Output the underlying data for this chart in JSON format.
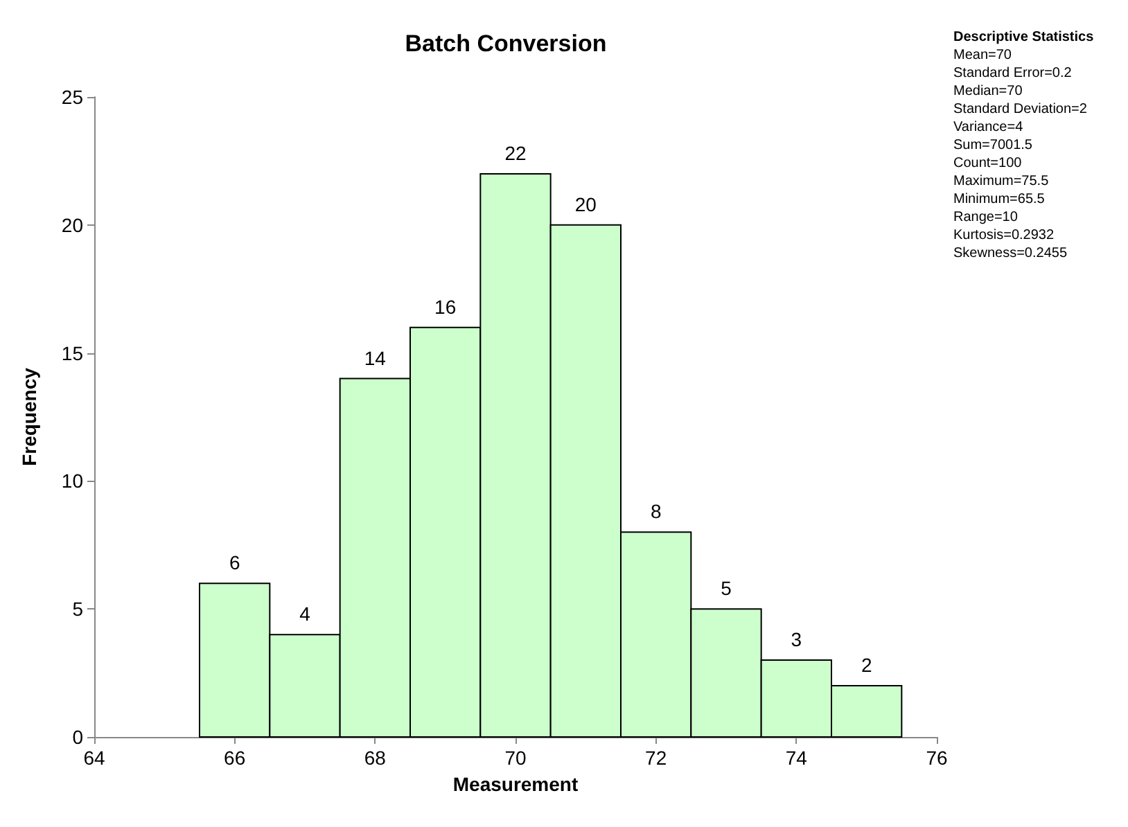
{
  "chart_data": {
    "type": "histogram",
    "title": "Batch Conversion",
    "xlabel": "Measurement",
    "ylabel": "Frequency",
    "bins": [
      65.5,
      66.5,
      67.5,
      68.5,
      69.5,
      70.5,
      71.5,
      72.5,
      73.5,
      74.5,
      75.5
    ],
    "values": [
      6,
      4,
      14,
      16,
      22,
      20,
      8,
      5,
      3,
      2
    ],
    "color": "#ccffcc",
    "xlim": [
      64,
      76
    ],
    "xticks": [
      64,
      66,
      68,
      70,
      72,
      74,
      76
    ],
    "ylim": [
      0,
      25
    ],
    "yticks": [
      0,
      5,
      10,
      15,
      20,
      25
    ],
    "data_labels": true,
    "annotations": [
      "Descriptive Statistics",
      "Mean=70",
      "Standard Error=0.2",
      "Median=70",
      "Standard Deviation=2",
      "Variance=4",
      "Sum=7001.5",
      "Count=100",
      "Maximum=75.5",
      "Minimum=65.5",
      "Range=10",
      "Kurtosis=0.2932",
      "Skewness=0.2455"
    ]
  }
}
